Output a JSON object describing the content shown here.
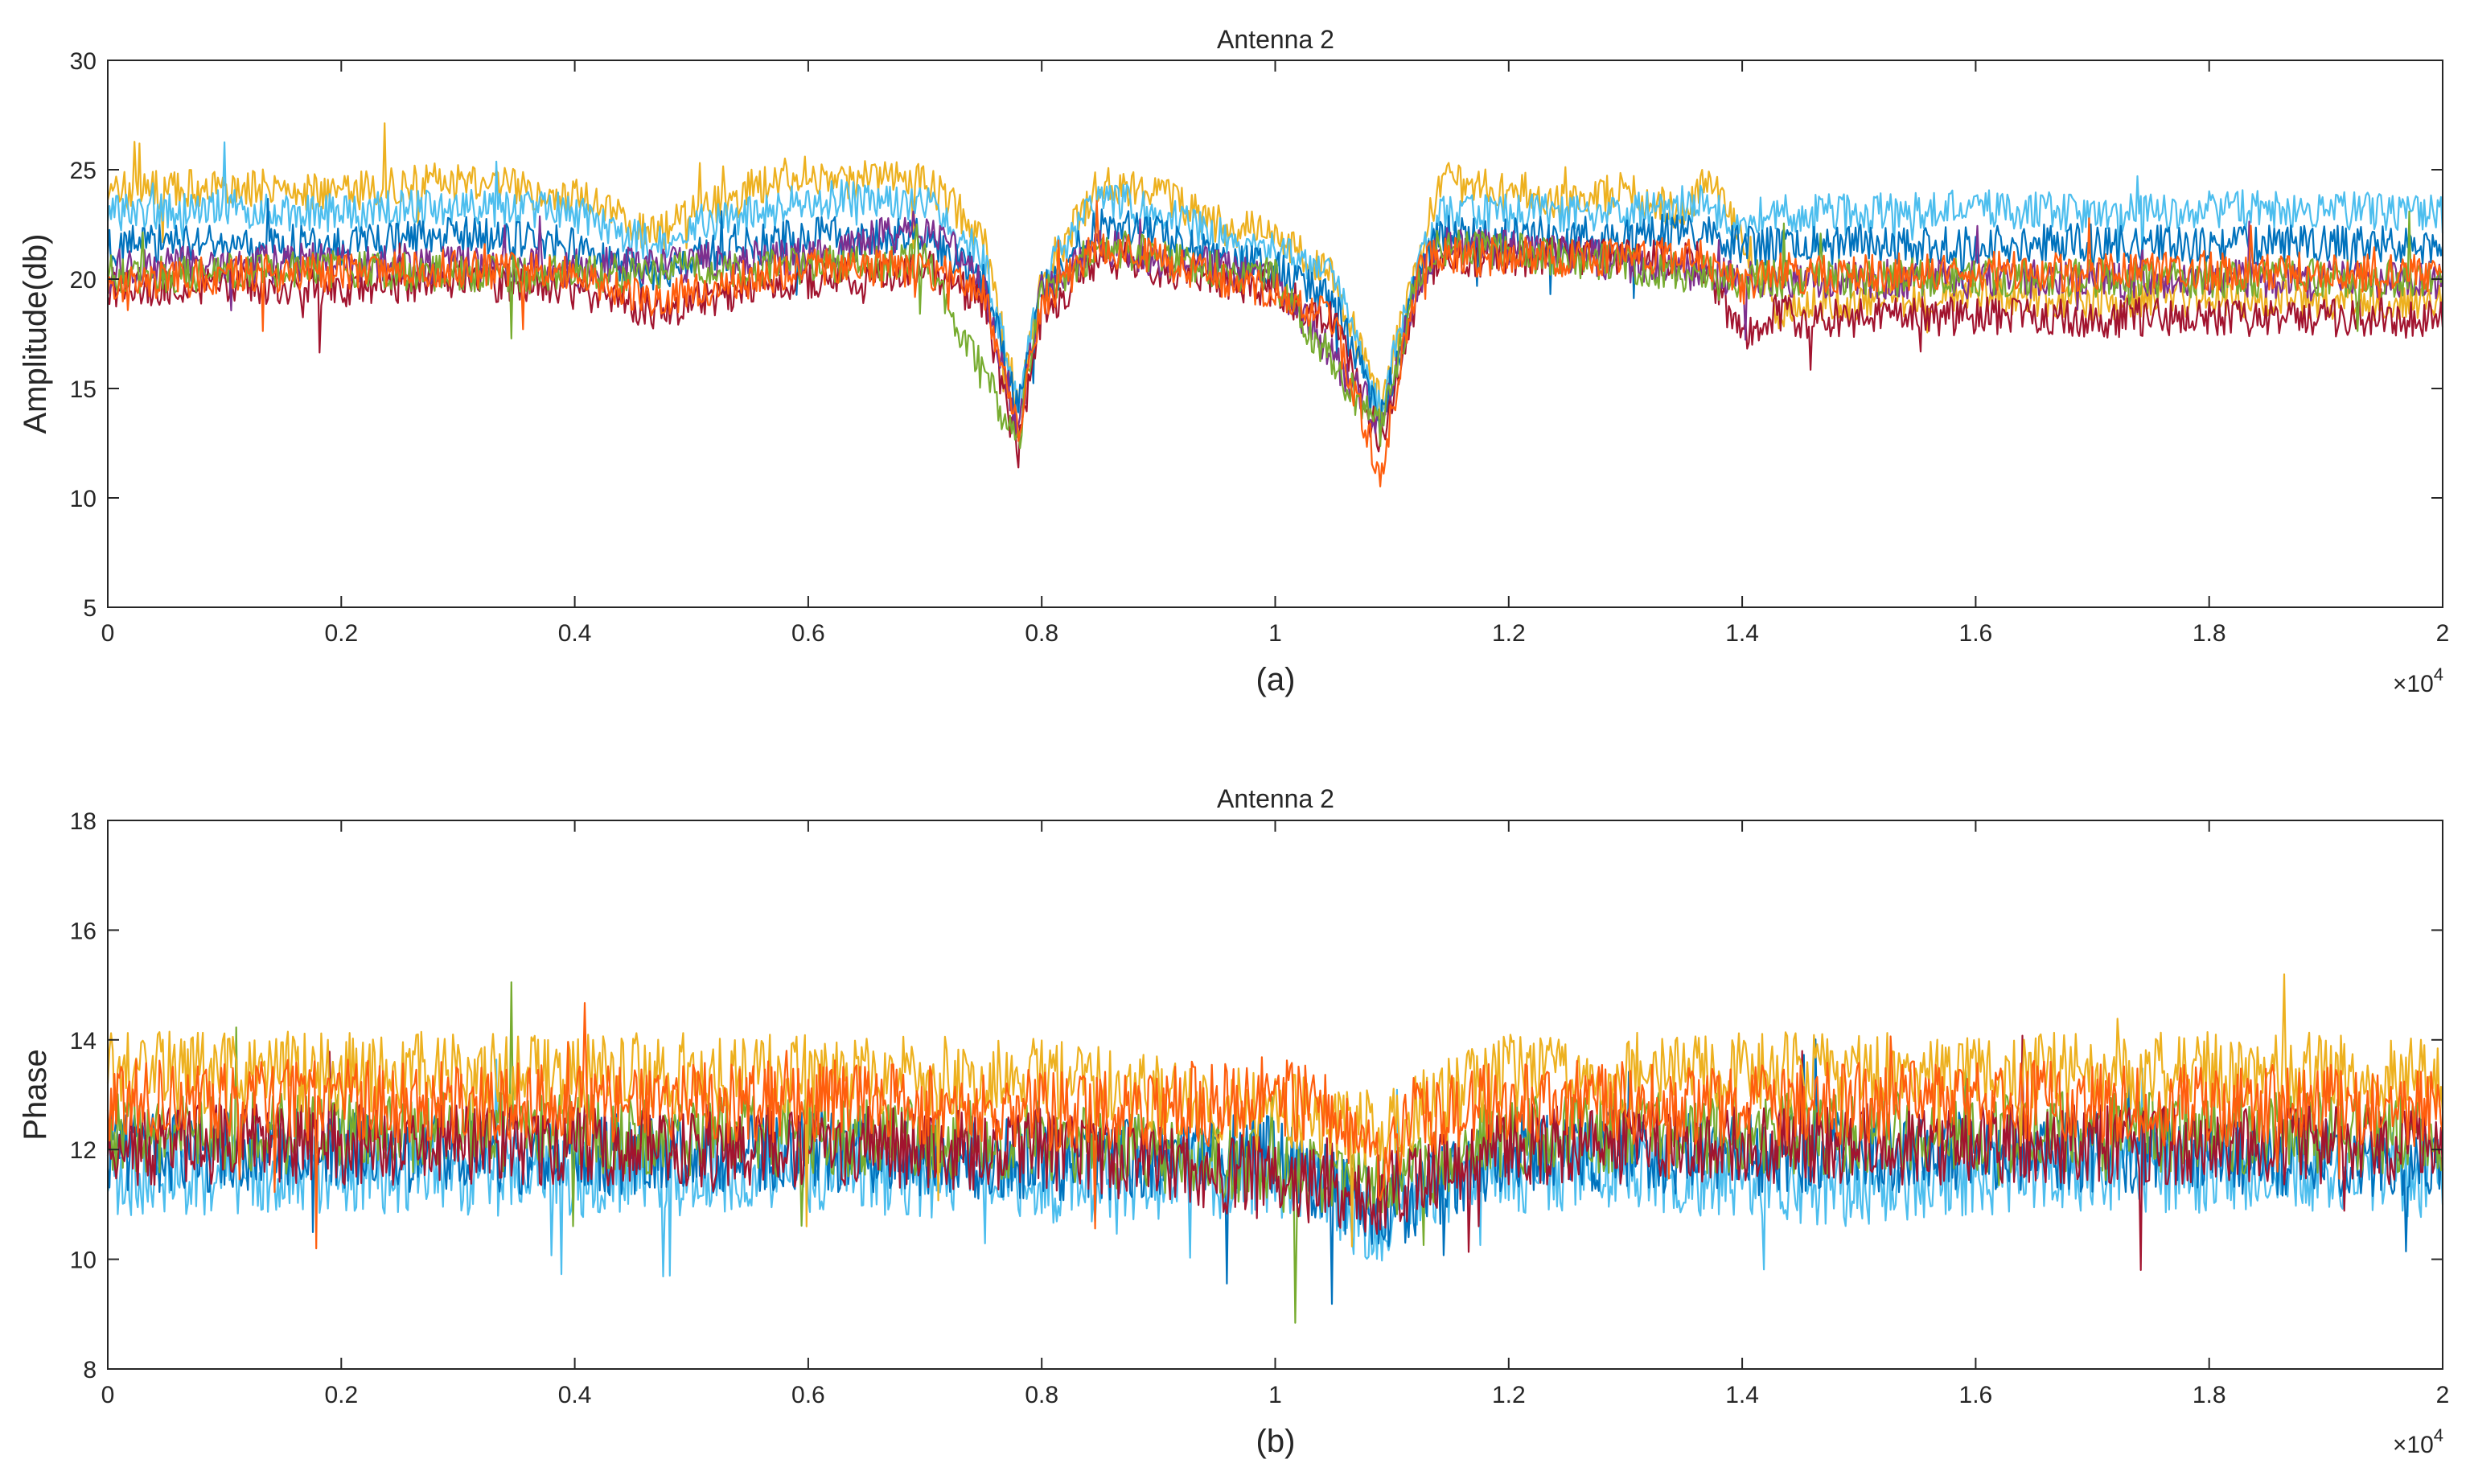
{
  "chart_data": [
    {
      "type": "line",
      "title": "Antenna 2",
      "xlabel": "",
      "ylabel": "Amplitude(db)",
      "caption": "(a)",
      "x_exponent_label": "×10",
      "x_exponent_power": "4",
      "xlim": [
        0,
        20000
      ],
      "ylim": [
        5,
        30
      ],
      "xticks": [
        0,
        2000,
        4000,
        6000,
        8000,
        10000,
        12000,
        14000,
        16000,
        18000,
        20000
      ],
      "xtick_labels": [
        "0",
        "0.2",
        "0.4",
        "0.6",
        "0.8",
        "1",
        "1.2",
        "1.4",
        "1.6",
        "1.8",
        "2"
      ],
      "yticks": [
        5,
        10,
        15,
        20,
        25,
        30
      ],
      "ytick_labels": [
        "5",
        "10",
        "15",
        "20",
        "25",
        "30"
      ],
      "grid": false,
      "series": [
        {
          "color": "#EDB120",
          "x": [
            0,
            1000,
            2000,
            3000,
            4000,
            4700,
            5000,
            5800,
            6500,
            7000,
            7500,
            7800,
            8000,
            8500,
            9000,
            9500,
            10000,
            10500,
            10900,
            11200,
            11400,
            12000,
            12500,
            13000,
            13500,
            13700,
            14000,
            14300,
            14500,
            15000,
            16000,
            17000,
            18000,
            19000,
            20000
          ],
          "values": [
            24,
            24.2,
            24,
            24.5,
            23.8,
            22,
            23,
            24.8,
            24.5,
            24.5,
            22,
            14,
            20,
            24.5,
            24,
            22.5,
            22,
            20,
            14.5,
            20,
            24.5,
            24,
            23.5,
            24,
            23,
            24.5,
            22,
            18.5,
            19,
            19,
            19.2,
            19,
            19.2,
            19,
            19
          ]
        },
        {
          "color": "#4DBEEE",
          "x": [
            0,
            1000,
            2000,
            3000,
            4000,
            4700,
            5000,
            6000,
            6500,
            7000,
            7500,
            7800,
            8000,
            8500,
            9000,
            9500,
            10000,
            10500,
            10900,
            11200,
            11400,
            12000,
            13000,
            13600,
            14000,
            14300,
            14500,
            15000,
            16000,
            17000,
            18000,
            19000,
            20000
          ],
          "values": [
            23,
            23.2,
            23,
            23.4,
            23,
            21.5,
            22.5,
            23.5,
            23.8,
            23.5,
            21,
            14,
            20,
            23.8,
            23,
            22,
            21.5,
            20,
            14,
            20,
            23,
            23,
            23,
            23.5,
            22.5,
            23.2,
            23,
            23,
            23.2,
            23,
            23.2,
            23.1,
            23
          ]
        },
        {
          "color": "#0072BD",
          "x": [
            0,
            1000,
            2000,
            3000,
            4000,
            4700,
            5000,
            6000,
            7000,
            7500,
            7800,
            8000,
            8500,
            9000,
            9500,
            10000,
            10500,
            10900,
            11200,
            11400,
            12000,
            13000,
            13600,
            14000,
            14500,
            15000,
            16000,
            17000,
            18000,
            19000,
            20000
          ],
          "values": [
            21.5,
            21.8,
            21.5,
            22,
            21.5,
            20,
            21,
            22,
            22,
            20,
            14,
            19.5,
            22.5,
            22,
            21,
            20.5,
            19,
            13.5,
            19.5,
            22,
            22,
            22,
            22.2,
            21.5,
            21.5,
            21.6,
            21.5,
            21.7,
            21.5,
            21.6,
            21.5
          ]
        },
        {
          "color": "#A2142F",
          "x": [
            0,
            1000,
            2000,
            3000,
            4000,
            4700,
            5000,
            6000,
            7000,
            7500,
            7800,
            8000,
            8500,
            9000,
            9500,
            10000,
            10500,
            10900,
            11200,
            11400,
            12000,
            13000,
            13600,
            14000,
            14300,
            14500,
            15000,
            16000,
            17000,
            18000,
            19000,
            20000
          ],
          "values": [
            19.5,
            19.8,
            19.6,
            20,
            19.5,
            18.5,
            19,
            20,
            20.5,
            19,
            12,
            18.5,
            21,
            20.5,
            20,
            19.5,
            18,
            12.5,
            18.5,
            21,
            21,
            21,
            21,
            17.5,
            18.5,
            18.2,
            18.2,
            18.3,
            18.2,
            18.3,
            18.2,
            18.2
          ]
        },
        {
          "color": "#7E2F8E",
          "x": [
            0,
            2000,
            4000,
            6000,
            7000,
            7500,
            7800,
            8000,
            8500,
            9000,
            10000,
            10900,
            11200,
            11400,
            12000,
            14000,
            16000,
            18000,
            20000
          ],
          "values": [
            20.5,
            20.8,
            20.5,
            21,
            22.5,
            20,
            13,
            19.5,
            21.5,
            21,
            20,
            13.5,
            19.5,
            21.5,
            21.5,
            20,
            20,
            20,
            20
          ]
        },
        {
          "color": "#77AC30",
          "x": [
            0,
            2000,
            4000,
            6000,
            7000,
            7800,
            8000,
            8500,
            9000,
            10000,
            10900,
            11200,
            11400,
            12000,
            14000,
            16000,
            18000,
            20000
          ],
          "values": [
            20.2,
            20.4,
            20.2,
            20.6,
            20.8,
            12.5,
            19.5,
            21.5,
            21,
            20,
            13,
            19.5,
            21.5,
            21.3,
            20,
            20.1,
            20,
            20.1
          ]
        },
        {
          "color": "#FF5E0E",
          "x": [
            0,
            500,
            1000,
            2000,
            3000,
            4000,
            4700,
            5000,
            6000,
            7000,
            7500,
            7800,
            8000,
            8500,
            9000,
            9500,
            10000,
            10500,
            10900,
            11100,
            11300,
            11400,
            12000,
            13000,
            13600,
            14000,
            14300,
            14500,
            15000,
            16000,
            17000,
            18000,
            19000,
            20000
          ],
          "values": [
            19.5,
            20,
            20.2,
            20.3,
            20.5,
            20.2,
            19,
            19.5,
            20.5,
            20.5,
            19.5,
            13,
            19,
            21.5,
            21,
            20,
            19.5,
            18,
            11,
            17,
            21.5,
            21,
            21,
            21,
            21.2,
            19.5,
            20.5,
            20.2,
            20.3,
            20.4,
            20.3,
            20.4,
            20.3,
            20.3
          ]
        }
      ]
    },
    {
      "type": "line",
      "title": "Antenna 2",
      "xlabel": "",
      "ylabel": "Phase",
      "caption": "(b)",
      "x_exponent_label": "×10",
      "x_exponent_power": "4",
      "xlim": [
        0,
        20000
      ],
      "ylim": [
        8,
        18
      ],
      "xticks": [
        0,
        2000,
        4000,
        6000,
        8000,
        10000,
        12000,
        14000,
        16000,
        18000,
        20000
      ],
      "xtick_labels": [
        "0",
        "0.2",
        "0.4",
        "0.6",
        "0.8",
        "1",
        "1.2",
        "1.4",
        "1.6",
        "1.8",
        "2"
      ],
      "yticks": [
        8,
        10,
        12,
        14,
        16,
        18
      ],
      "ytick_labels": [
        "8",
        "10",
        "12",
        "14",
        "16",
        "18"
      ],
      "grid": false,
      "series": [
        {
          "color": "#4DBEEE",
          "x": [
            0,
            2000,
            4000,
            6000,
            8000,
            10000,
            10500,
            10900,
            11200,
            12000,
            14000,
            14500,
            16000,
            18000,
            20000
          ],
          "values": [
            11.5,
            11.6,
            11.5,
            11.6,
            11.4,
            11.5,
            11.2,
            10.3,
            11.2,
            11.6,
            11.5,
            11.3,
            11.5,
            11.6,
            11.5
          ]
        },
        {
          "color": "#0072BD",
          "x": [
            0,
            2000,
            4000,
            6000,
            8000,
            10000,
            10900,
            12000,
            14000,
            16000,
            18000,
            20000
          ],
          "values": [
            11.9,
            12,
            11.9,
            12,
            11.8,
            11.9,
            10.8,
            12,
            11.9,
            12,
            11.9,
            11.9
          ]
        },
        {
          "color": "#77AC30",
          "x": [
            0,
            4000,
            8000,
            10900,
            12000,
            16000,
            20000
          ],
          "values": [
            12.3,
            12.3,
            12.2,
            11.3,
            12.3,
            12.3,
            12.3
          ]
        },
        {
          "color": "#A2142F",
          "x": [
            0,
            4000,
            8000,
            10900,
            12000,
            16000,
            20000
          ],
          "values": [
            12.1,
            12.1,
            12,
            11.2,
            12.1,
            12.1,
            12.1
          ]
        },
        {
          "color": "#EDB120",
          "x": [
            0,
            4000,
            8000,
            10900,
            12000,
            16000,
            20000
          ],
          "values": [
            13.4,
            13.4,
            13.3,
            12.4,
            13.4,
            13.4,
            13.4
          ]
        },
        {
          "color": "#FF5E0E",
          "x": [
            0,
            2000,
            4000,
            6000,
            8000,
            9500,
            10000,
            10500,
            10900,
            11200,
            12000,
            14000,
            16000,
            18000,
            20000
          ],
          "values": [
            12.9,
            12.9,
            12.8,
            12.9,
            12.7,
            12.8,
            13,
            12.6,
            11.8,
            12.6,
            12.9,
            12.8,
            12.9,
            12.8,
            12.8
          ]
        }
      ]
    }
  ]
}
